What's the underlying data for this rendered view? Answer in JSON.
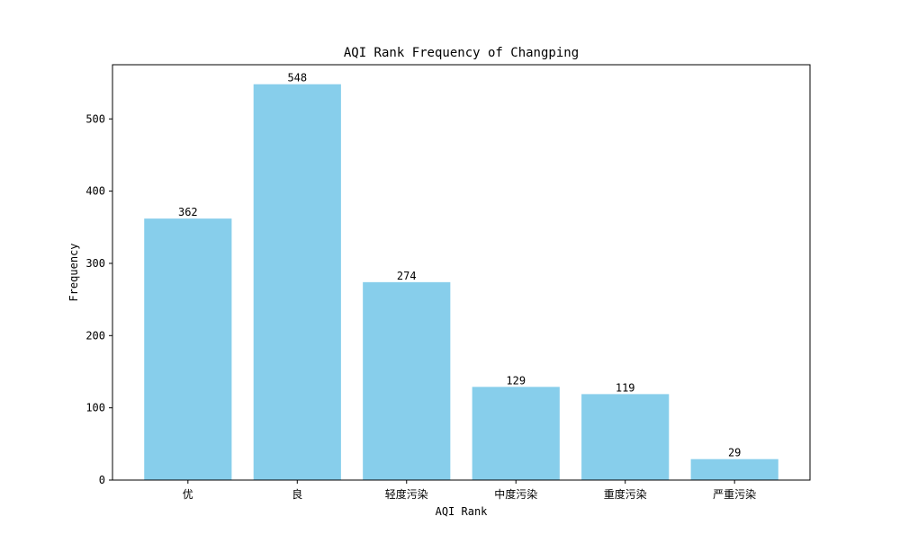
{
  "chart_data": {
    "type": "bar",
    "title": "AQI Rank Frequency of Changping",
    "xlabel": "AQI Rank",
    "ylabel": "Frequency",
    "categories": [
      "优",
      "良",
      "轻度污染",
      "中度污染",
      "重度污染",
      "严重污染"
    ],
    "values": [
      362,
      548,
      274,
      129,
      119,
      29
    ],
    "ylim": [
      0,
      575
    ],
    "yticks": [
      0,
      100,
      200,
      300,
      400,
      500
    ],
    "bar_color": "#87CEEB",
    "grid": false,
    "legend": null
  }
}
